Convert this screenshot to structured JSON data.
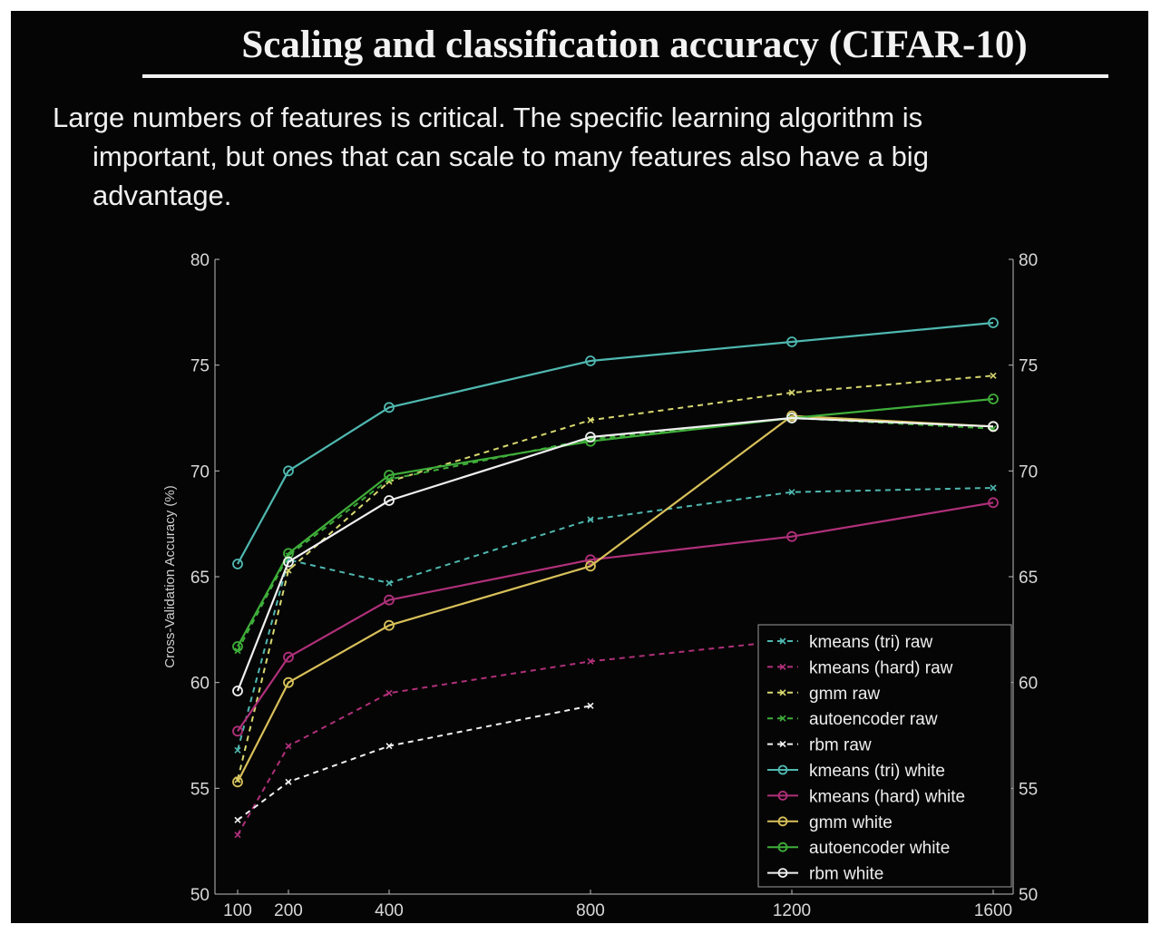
{
  "slide": {
    "title": "Scaling and classification accuracy (CIFAR-10)",
    "subtitle_line1": "Large numbers of features is critical. The specific learning algorithm is",
    "subtitle_line2": "important, but ones that can scale to many features also have a big",
    "subtitle_line3": "advantage."
  },
  "chart_data": {
    "type": "line",
    "title": "",
    "xlabel": "",
    "ylabel": "Cross-Validation Accuracy (%)",
    "ylim": [
      50,
      80
    ],
    "yticks": [
      50,
      55,
      60,
      65,
      70,
      75,
      80
    ],
    "xticks": [
      100,
      200,
      400,
      800,
      1200,
      1600
    ],
    "xlim": [
      100,
      1600
    ],
    "grid": false,
    "right_axis_ticks": true,
    "legend_position": "bottom-right",
    "colors": {
      "background": "#050505",
      "axis": "#bdbdbd",
      "kmeans_tri": "#4fb8b0",
      "kmeans_hard": "#b0307a",
      "gmm": "#d8c05a",
      "autoencoder": "#3fae3a",
      "rbm": "#e8e8e8"
    },
    "series": [
      {
        "name": "kmeans (tri) raw",
        "color": "#4fb8b0",
        "style": "dashed",
        "marker": "x",
        "x": [
          100,
          200,
          400,
          800,
          1200,
          1600
        ],
        "y": [
          56.8,
          65.8,
          64.7,
          67.7,
          69.0,
          69.2
        ]
      },
      {
        "name": "kmeans (hard) raw",
        "color": "#b0307a",
        "style": "dashed",
        "marker": "x",
        "x": [
          100,
          200,
          400,
          800,
          1200,
          1600
        ],
        "y": [
          52.8,
          57.0,
          59.5,
          61.0,
          62.0,
          62.5
        ]
      },
      {
        "name": "gmm raw",
        "color": "#d8d870",
        "style": "dashed",
        "marker": "x",
        "x": [
          100,
          200,
          400,
          800,
          1200,
          1600
        ],
        "y": [
          55.4,
          65.3,
          69.5,
          72.4,
          73.7,
          74.5
        ]
      },
      {
        "name": "autoencoder raw",
        "color": "#3fae3a",
        "style": "dashed",
        "marker": "x",
        "x": [
          100,
          200,
          400,
          800,
          1200,
          1600
        ],
        "y": [
          61.5,
          66.0,
          69.6,
          71.5,
          72.5,
          72.0
        ]
      },
      {
        "name": "rbm raw",
        "color": "#f0f0f0",
        "style": "dashed",
        "marker": "x",
        "x": [
          100,
          200,
          400,
          800
        ],
        "y": [
          53.5,
          55.3,
          57.0,
          58.9
        ]
      },
      {
        "name": "kmeans (tri) white",
        "color": "#4fb8b0",
        "style": "solid",
        "marker": "o",
        "x": [
          100,
          200,
          400,
          800,
          1200,
          1600
        ],
        "y": [
          65.6,
          70.0,
          73.0,
          75.2,
          76.1,
          77.0
        ]
      },
      {
        "name": "kmeans (hard) white",
        "color": "#b0307a",
        "style": "solid",
        "marker": "o",
        "x": [
          100,
          200,
          400,
          800,
          1200,
          1600
        ],
        "y": [
          57.7,
          61.2,
          63.9,
          65.8,
          66.9,
          68.5
        ]
      },
      {
        "name": "gmm white",
        "color": "#d8c05a",
        "style": "solid",
        "marker": "o",
        "x": [
          100,
          200,
          400,
          800,
          1200,
          1600
        ],
        "y": [
          55.3,
          60.0,
          62.7,
          65.5,
          72.6,
          72.1
        ]
      },
      {
        "name": "autoencoder white",
        "color": "#3fae3a",
        "style": "solid",
        "marker": "o",
        "x": [
          100,
          200,
          400,
          800,
          1200,
          1600
        ],
        "y": [
          61.7,
          66.1,
          69.8,
          71.4,
          72.5,
          73.4
        ]
      },
      {
        "name": "rbm white",
        "color": "#f0f0f0",
        "style": "solid",
        "marker": "o",
        "x": [
          100,
          200,
          400,
          800,
          1200,
          1600
        ],
        "y": [
          59.6,
          65.7,
          68.6,
          71.6,
          72.5,
          72.1
        ]
      }
    ]
  }
}
